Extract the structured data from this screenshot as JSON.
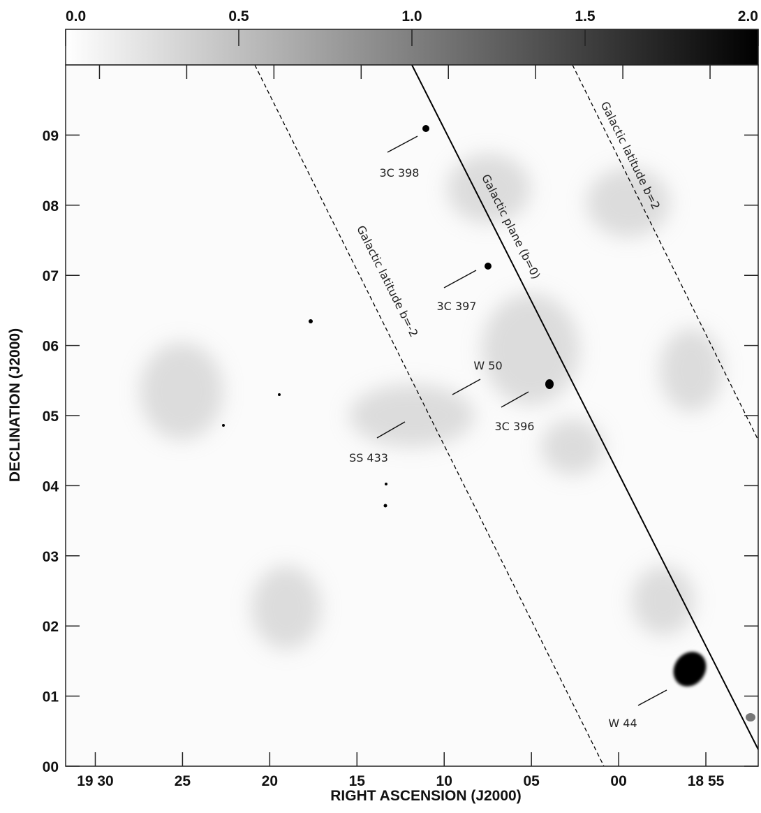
{
  "chart_data": {
    "type": "sky-map",
    "x_label": "RIGHT ASCENSION (J2000)",
    "y_label": "DECLINATION (J2000)",
    "xlim": [
      1171.7,
      1132
    ],
    "xticks": [
      {
        "value": 1170,
        "label": "19 30"
      },
      {
        "value": 1165,
        "label": "25"
      },
      {
        "value": 1160,
        "label": "20"
      },
      {
        "value": 1155,
        "label": "15"
      },
      {
        "value": 1150,
        "label": "10"
      },
      {
        "value": 1145,
        "label": "05"
      },
      {
        "value": 1140,
        "label": "00"
      },
      {
        "value": 1135,
        "label": "18 55"
      }
    ],
    "ylim": [
      0,
      10
    ],
    "yticks": [
      {
        "value": 0,
        "label": "00"
      },
      {
        "value": 1,
        "label": "01"
      },
      {
        "value": 2,
        "label": "02"
      },
      {
        "value": 3,
        "label": "03"
      },
      {
        "value": 4,
        "label": "04"
      },
      {
        "value": 5,
        "label": "05"
      },
      {
        "value": 6,
        "label": "06"
      },
      {
        "value": 7,
        "label": "07"
      },
      {
        "value": 8,
        "label": "08"
      },
      {
        "value": 9,
        "label": "09"
      }
    ],
    "colorbar_lim": [
      0,
      2
    ],
    "colorbar_ticks": [
      {
        "value": 0,
        "label": "0.0"
      },
      0.5,
      {
        "value": 1,
        "label": "1.0"
      },
      1.5,
      {
        "value": 2,
        "label": "2.0"
      }
    ],
    "annotations": [
      "3C 398",
      "3C 397",
      "W 50",
      "SS 433",
      "3C 396",
      "W 44"
    ],
    "line_labels": [
      "Galactic plane (b=0)",
      "Galactic latitude b=-2",
      "Galactic latitude b=2"
    ]
  }
}
